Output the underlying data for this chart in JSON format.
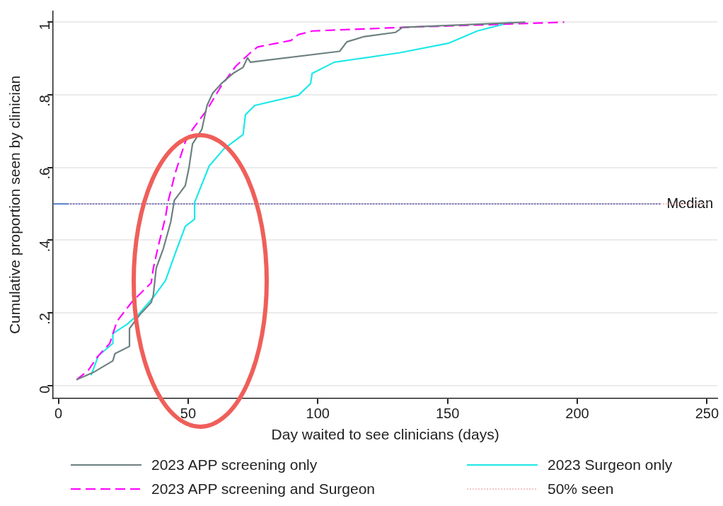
{
  "chart_data": {
    "type": "line",
    "xlabel": "Day waited to see clinicians (days)",
    "ylabel": "Cumulative proportion seen by clinician",
    "xlim": [
      -2,
      254
    ],
    "ylim": [
      -0.035,
      1.03
    ],
    "xticks": [
      0,
      50,
      100,
      150,
      200,
      250
    ],
    "yticks": [
      0,
      {
        "value": 0.2,
        "label": ".2"
      },
      {
        "value": 0.4,
        "label": ".4"
      },
      {
        "value": 0.6,
        "label": ".6"
      },
      {
        "value": 0.8,
        "label": ".8"
      },
      1
    ],
    "grid": "y",
    "legend": "bottom",
    "marker": "none",
    "ref_lines": [
      {
        "axis": "y",
        "value": 0.5,
        "label": "Median",
        "color": "#4472c4"
      }
    ],
    "series": [
      {
        "name": "2023 APP screening only",
        "color": "#6e8080",
        "line_style": "solid",
        "x": [
          7,
          13.4,
          21,
          21.8,
          27.4,
          27.4,
          31.6,
          35.8,
          36.6,
          37.7,
          40.5,
          43.3,
          44.7,
          48.9,
          50.3,
          51.7,
          55.3,
          57.3,
          59.5,
          62.8,
          67.3,
          71.2,
          72.9,
          74,
          108.4,
          111.2,
          117.6,
          129.9,
          132.7,
          180
        ],
        "values": [
          0.016,
          0.036,
          0.068,
          0.088,
          0.108,
          0.157,
          0.197,
          0.229,
          0.249,
          0.323,
          0.378,
          0.45,
          0.51,
          0.55,
          0.598,
          0.665,
          0.705,
          0.771,
          0.805,
          0.831,
          0.859,
          0.876,
          0.902,
          0.89,
          0.92,
          0.946,
          0.96,
          0.972,
          0.986,
          1.0
        ]
      },
      {
        "name": "2023 APP screening and Surgeon",
        "color": "#ff00ff",
        "line_style": "dashed",
        "x": [
          7,
          11.5,
          15.4,
          19.8,
          22.6,
          28.2,
          35.8,
          36.6,
          38.5,
          41.3,
          42.2,
          45,
          48.9,
          51.7,
          57.3,
          62.8,
          68.4,
          74,
          76.8,
          89.7,
          92.5,
          98,
          133.5,
          195
        ],
        "values": [
          0.016,
          0.042,
          0.082,
          0.116,
          0.177,
          0.229,
          0.283,
          0.323,
          0.384,
          0.464,
          0.504,
          0.584,
          0.671,
          0.705,
          0.759,
          0.825,
          0.879,
          0.916,
          0.932,
          0.95,
          0.966,
          0.976,
          0.986,
          1.0
        ]
      },
      {
        "name": "2023 Surgeon only",
        "color": "#1ee8e8",
        "line_style": "solid",
        "x": [
          12.6,
          15.4,
          21,
          21,
          26.5,
          31,
          36.6,
          41.3,
          45,
          48.9,
          52.5,
          52.5,
          58.1,
          63.7,
          71.2,
          72.1,
          75.7,
          92.5,
          97.2,
          97.8,
          106.4,
          131.6,
          150.3,
          161.5,
          174.6
        ],
        "values": [
          0.028,
          0.082,
          0.116,
          0.143,
          0.169,
          0.197,
          0.243,
          0.289,
          0.363,
          0.438,
          0.458,
          0.504,
          0.604,
          0.651,
          0.691,
          0.745,
          0.771,
          0.799,
          0.831,
          0.859,
          0.89,
          0.916,
          0.942,
          0.976,
          1.0
        ]
      },
      {
        "name": "50% seen",
        "color": "#f2c4c4",
        "line_style": "dotted",
        "x": [
          4,
          250
        ],
        "values": [
          0.5,
          0.5
        ]
      }
    ]
  }
}
